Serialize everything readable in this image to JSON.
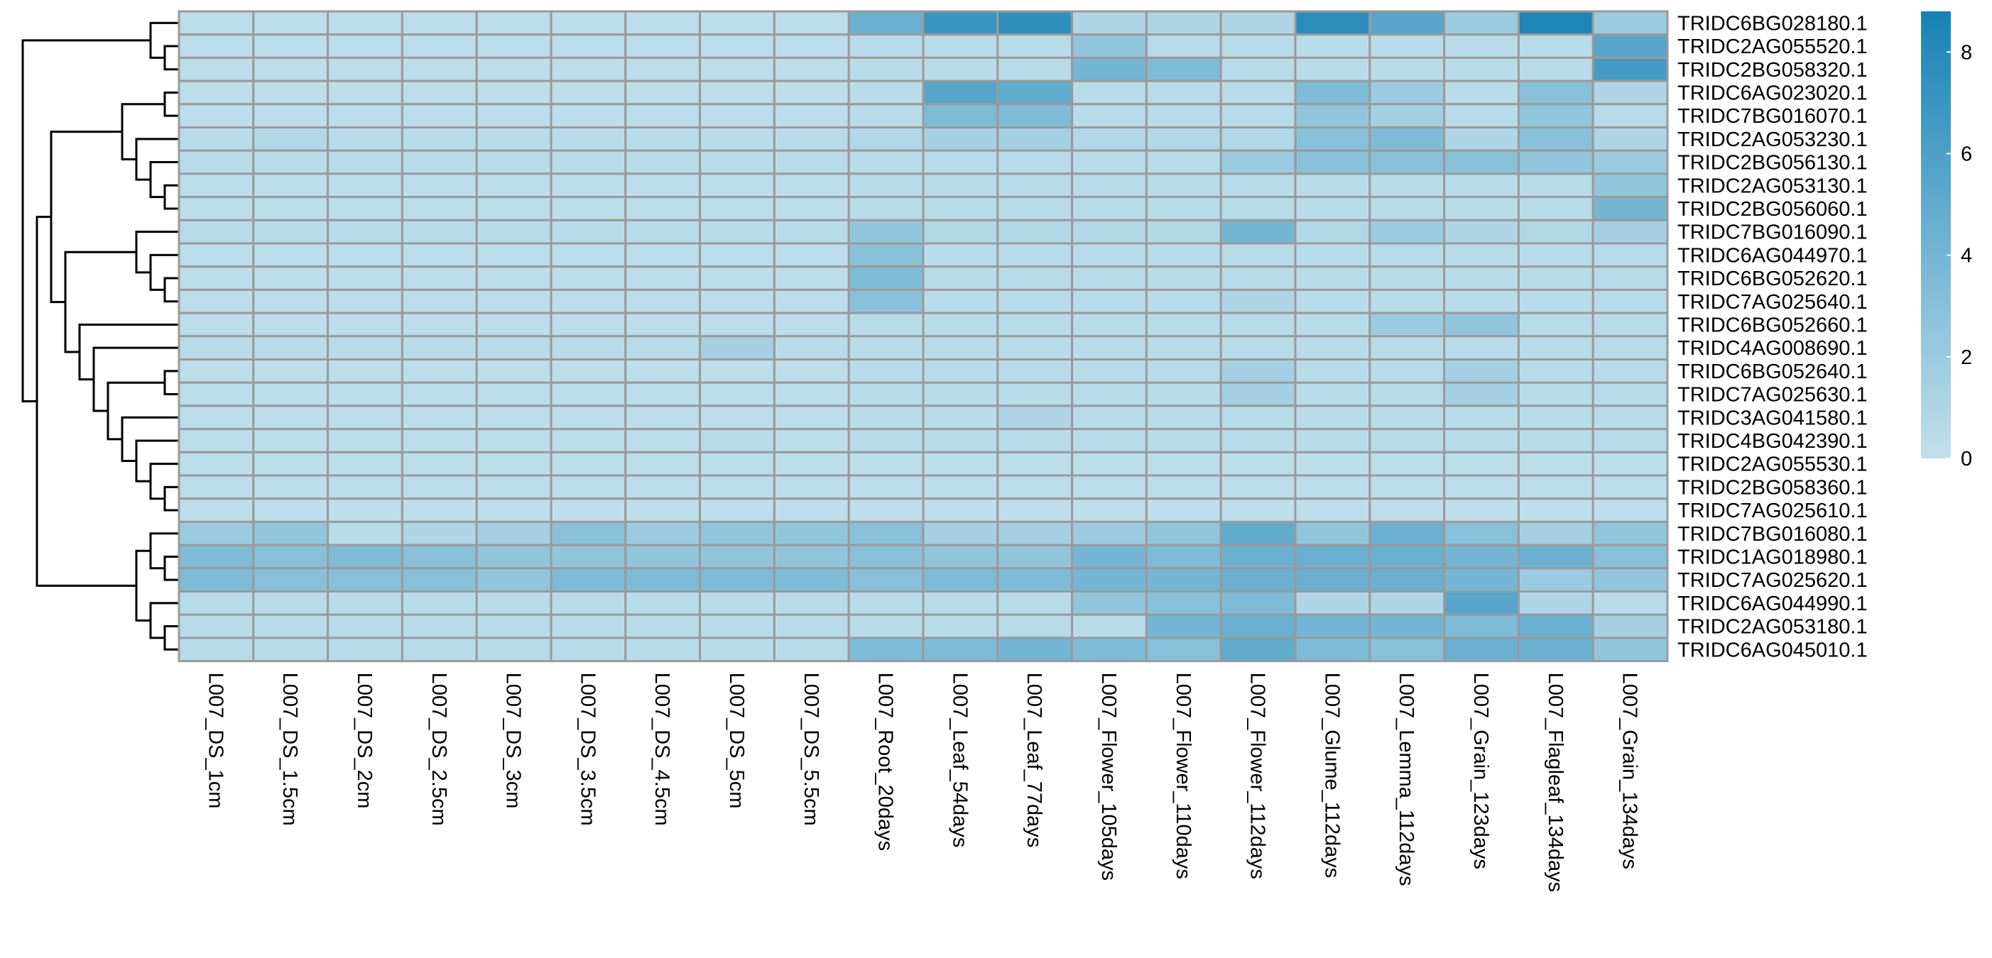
{
  "chart_data": {
    "type": "heatmap",
    "rows": [
      "TRIDC6BG028180.1",
      "TRIDC2AG055520.1",
      "TRIDC2BG058320.1",
      "TRIDC6AG023020.1",
      "TRIDC7BG016070.1",
      "TRIDC2AG053230.1",
      "TRIDC2BG056130.1",
      "TRIDC2AG053130.1",
      "TRIDC2BG056060.1",
      "TRIDC7BG016090.1",
      "TRIDC6AG044970.1",
      "TRIDC6BG052620.1",
      "TRIDC7AG025640.1",
      "TRIDC6BG052660.1",
      "TRIDC4AG008690.1",
      "TRIDC6BG052640.1",
      "TRIDC7AG025630.1",
      "TRIDC3AG041580.1",
      "TRIDC4BG042390.1",
      "TRIDC2AG055530.1",
      "TRIDC2BG058360.1",
      "TRIDC7AG025610.1",
      "TRIDC7BG016080.1",
      "TRIDC1AG018980.1",
      "TRIDC7AG025620.1",
      "TRIDC6AG044990.1",
      "TRIDC2AG053180.1",
      "TRIDC6AG045010.1"
    ],
    "columns": [
      "L007_DS_1cm",
      "L007_DS_1.5cm",
      "L007_DS_2cm",
      "L007_DS_2.5cm",
      "L007_DS_3cm",
      "L007_DS_3.5cm",
      "L007_DS_4.5cm",
      "L007_DS_5cm",
      "L007_DS_5.5cm",
      "L007_Root_20days",
      "L007_Leaf_54days",
      "L007_Leaf_77days",
      "L007_Flower_105days",
      "L007_Flower_110days",
      "L007_Flower_112days",
      "L007_Glume_112days",
      "L007_Lemma_112days",
      "L007_Grain_123days",
      "L007_Flagleaf_134days",
      "L007_Grain_134days"
    ],
    "values": [
      [
        0.3,
        0.3,
        0.3,
        0.3,
        0.3,
        0.3,
        0.3,
        0.3,
        0.3,
        4.5,
        7.0,
        7.5,
        1.0,
        1.0,
        1.0,
        7.8,
        5.5,
        2.0,
        8.5,
        2.0
      ],
      [
        0.3,
        0.3,
        0.3,
        0.3,
        0.3,
        0.3,
        0.3,
        0.3,
        0.3,
        0.5,
        0.5,
        0.5,
        2.5,
        0.5,
        0.5,
        0.5,
        0.5,
        0.5,
        0.5,
        5.5
      ],
      [
        0.3,
        0.3,
        0.3,
        0.3,
        0.3,
        0.3,
        0.3,
        0.3,
        0.3,
        0.5,
        0.5,
        0.5,
        4.0,
        3.5,
        0.5,
        0.5,
        0.5,
        0.5,
        0.5,
        6.5
      ],
      [
        0.3,
        0.3,
        0.3,
        0.3,
        0.3,
        0.3,
        0.3,
        0.3,
        0.3,
        0.5,
        5.5,
        5.0,
        0.5,
        0.5,
        0.5,
        3.5,
        2.0,
        0.5,
        3.0,
        1.0
      ],
      [
        0.3,
        0.3,
        0.3,
        0.3,
        0.3,
        0.3,
        0.3,
        0.3,
        0.3,
        0.5,
        3.5,
        3.5,
        0.5,
        0.5,
        0.5,
        2.5,
        1.5,
        0.5,
        2.5,
        0.5
      ],
      [
        0.5,
        0.8,
        0.5,
        0.5,
        0.5,
        0.5,
        0.5,
        0.5,
        0.5,
        0.8,
        1.5,
        1.5,
        0.8,
        0.8,
        0.8,
        3.0,
        3.5,
        1.0,
        3.0,
        1.0
      ],
      [
        0.5,
        0.5,
        0.5,
        0.5,
        0.5,
        0.5,
        0.5,
        0.5,
        0.5,
        0.5,
        0.5,
        0.5,
        0.5,
        0.5,
        2.0,
        3.0,
        3.0,
        3.0,
        2.5,
        2.0
      ],
      [
        0.3,
        0.3,
        0.3,
        0.3,
        0.3,
        0.3,
        0.3,
        0.3,
        0.3,
        0.5,
        0.5,
        0.5,
        0.5,
        0.5,
        0.5,
        0.5,
        0.5,
        0.5,
        0.5,
        2.5
      ],
      [
        0.3,
        0.3,
        0.3,
        0.3,
        0.3,
        0.3,
        0.3,
        0.3,
        0.3,
        0.5,
        0.5,
        0.5,
        0.5,
        0.5,
        0.5,
        0.5,
        0.5,
        0.5,
        0.5,
        4.0
      ],
      [
        0.5,
        0.5,
        0.5,
        0.5,
        0.5,
        0.5,
        0.5,
        0.5,
        0.5,
        2.5,
        0.8,
        0.8,
        0.8,
        0.8,
        4.0,
        0.8,
        2.0,
        1.0,
        0.8,
        1.5
      ],
      [
        0.3,
        0.3,
        0.3,
        0.3,
        0.3,
        0.3,
        0.3,
        0.3,
        0.3,
        3.0,
        0.5,
        0.5,
        0.5,
        0.5,
        0.5,
        0.5,
        0.5,
        0.5,
        0.5,
        0.5
      ],
      [
        0.3,
        0.3,
        0.3,
        0.3,
        0.3,
        0.3,
        0.3,
        0.3,
        0.3,
        3.5,
        0.5,
        0.5,
        0.5,
        0.5,
        0.5,
        0.5,
        0.5,
        0.5,
        0.5,
        0.5
      ],
      [
        0.3,
        0.3,
        0.3,
        0.3,
        0.3,
        0.3,
        0.3,
        0.3,
        0.3,
        3.0,
        0.5,
        0.5,
        0.5,
        0.5,
        1.0,
        0.5,
        0.5,
        0.5,
        0.5,
        0.5
      ],
      [
        0.3,
        0.3,
        0.3,
        0.3,
        0.3,
        0.3,
        0.3,
        0.3,
        0.3,
        0.5,
        0.5,
        0.5,
        0.5,
        0.5,
        0.5,
        0.5,
        2.0,
        2.5,
        0.5,
        0.5
      ],
      [
        0.5,
        0.5,
        0.5,
        0.5,
        0.5,
        0.5,
        0.5,
        1.5,
        0.5,
        0.5,
        0.5,
        0.5,
        0.5,
        0.5,
        0.5,
        0.5,
        0.5,
        0.5,
        0.5,
        0.5
      ],
      [
        0.3,
        0.3,
        0.3,
        0.3,
        0.3,
        0.3,
        0.3,
        0.3,
        0.3,
        0.5,
        0.5,
        0.5,
        0.5,
        0.5,
        1.5,
        0.5,
        0.5,
        1.5,
        0.5,
        0.5
      ],
      [
        0.3,
        0.3,
        0.3,
        0.3,
        0.3,
        0.3,
        0.3,
        0.3,
        0.3,
        0.5,
        0.5,
        0.5,
        0.5,
        0.5,
        1.5,
        0.5,
        0.5,
        1.5,
        0.5,
        0.5
      ],
      [
        0.3,
        0.3,
        0.3,
        0.3,
        0.3,
        0.3,
        0.3,
        0.3,
        0.3,
        0.5,
        0.5,
        1.0,
        0.5,
        0.5,
        0.5,
        0.5,
        0.5,
        0.5,
        0.5,
        0.5
      ],
      [
        0.3,
        0.3,
        0.3,
        0.3,
        0.3,
        0.3,
        0.3,
        0.5,
        0.3,
        0.5,
        0.5,
        0.5,
        0.5,
        0.5,
        0.5,
        0.5,
        0.5,
        0.5,
        0.5,
        0.5
      ],
      [
        0.3,
        0.3,
        0.3,
        0.3,
        0.3,
        0.3,
        0.3,
        0.3,
        0.3,
        0.3,
        0.3,
        0.3,
        0.3,
        0.3,
        0.3,
        0.3,
        0.3,
        0.3,
        0.3,
        0.3
      ],
      [
        0.3,
        0.3,
        0.3,
        0.3,
        0.3,
        0.3,
        0.3,
        0.3,
        0.3,
        0.3,
        0.3,
        0.3,
        0.3,
        0.3,
        0.3,
        0.3,
        0.3,
        0.3,
        0.3,
        0.3
      ],
      [
        0.2,
        0.2,
        0.2,
        0.2,
        0.2,
        0.2,
        0.2,
        0.2,
        0.2,
        0.2,
        0.2,
        0.2,
        0.2,
        0.2,
        0.2,
        0.2,
        0.2,
        0.2,
        0.2,
        0.2
      ],
      [
        2.0,
        2.5,
        0.5,
        1.0,
        1.5,
        3.0,
        2.0,
        2.5,
        2.5,
        3.0,
        1.5,
        1.5,
        2.0,
        2.5,
        5.0,
        2.5,
        4.5,
        3.0,
        1.5,
        2.5
      ],
      [
        3.5,
        3.0,
        3.5,
        3.0,
        2.5,
        2.5,
        2.5,
        2.5,
        2.5,
        3.0,
        2.5,
        2.5,
        4.0,
        3.5,
        4.5,
        4.5,
        4.5,
        4.0,
        4.5,
        3.0
      ],
      [
        3.5,
        3.0,
        3.0,
        3.0,
        2.5,
        3.5,
        3.5,
        3.5,
        3.5,
        3.0,
        3.5,
        3.5,
        4.0,
        4.0,
        4.5,
        4.5,
        4.5,
        4.0,
        2.0,
        2.5
      ],
      [
        0.5,
        0.5,
        0.5,
        0.5,
        0.5,
        0.5,
        0.5,
        0.5,
        0.5,
        0.5,
        0.5,
        0.5,
        2.5,
        3.0,
        3.5,
        1.0,
        1.0,
        5.5,
        1.0,
        0.5
      ],
      [
        0.5,
        0.5,
        0.5,
        0.5,
        0.5,
        0.5,
        0.5,
        0.5,
        0.5,
        0.5,
        0.5,
        0.5,
        0.5,
        4.0,
        4.5,
        4.0,
        4.0,
        3.5,
        4.5,
        1.5
      ],
      [
        0.5,
        0.5,
        0.5,
        0.5,
        0.5,
        0.5,
        0.5,
        0.5,
        0.5,
        3.5,
        3.5,
        4.0,
        3.5,
        3.0,
        5.0,
        3.5,
        3.0,
        4.5,
        4.5,
        2.5
      ]
    ],
    "color_scale": {
      "min": 0,
      "max": 8.8,
      "low_color": "#c2e0ec",
      "high_color": "#1782b5",
      "ticks": [
        0,
        2,
        4,
        6,
        8
      ]
    },
    "row_dendrogram": true
  }
}
